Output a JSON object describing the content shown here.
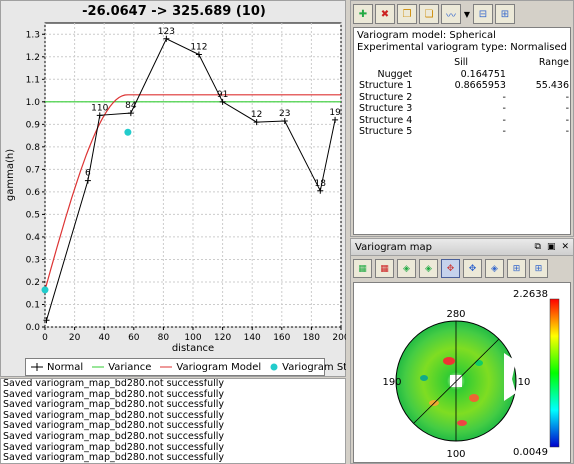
{
  "chart_title": "-26.0647 -> 325.689 (10)",
  "chart_data": {
    "type": "line",
    "xlabel": "distance",
    "ylabel": "gamma(h)",
    "xlim": [
      0,
      200
    ],
    "ylim": [
      0,
      1.35
    ],
    "x_ticks": [
      "0",
      "20",
      "40",
      "60",
      "80",
      "100",
      "120",
      "140",
      "160",
      "180",
      "200"
    ],
    "y_ticks": [
      "0.0",
      "0.1",
      "0.2",
      "0.3",
      "0.4",
      "0.5",
      "0.6",
      "0.7",
      "0.8",
      "0.9",
      "1.0",
      "1.1",
      "1.2",
      "1.3"
    ],
    "series": [
      {
        "name": "Normal",
        "color": "#000000",
        "points": [
          {
            "x": 1,
            "y": 0.03,
            "label": ""
          },
          {
            "x": 29,
            "y": 0.65,
            "label": "6"
          },
          {
            "x": 37,
            "y": 0.94,
            "label": "110"
          },
          {
            "x": 58,
            "y": 0.95,
            "label": "84"
          },
          {
            "x": 82,
            "y": 1.28,
            "label": "123"
          },
          {
            "x": 104,
            "y": 1.21,
            "label": "112"
          },
          {
            "x": 120,
            "y": 1.0,
            "label": "91"
          },
          {
            "x": 143,
            "y": 0.91,
            "label": "12"
          },
          {
            "x": 162,
            "y": 0.915,
            "label": "23"
          },
          {
            "x": 186,
            "y": 0.605,
            "label": "18"
          },
          {
            "x": 196,
            "y": 0.92,
            "label": "19"
          }
        ]
      },
      {
        "name": "Variance",
        "color": "#33cc33",
        "y": 1.0
      },
      {
        "name": "Variogram Model",
        "color": "#dd3333",
        "nugget": 0.164751,
        "sill": 0.8665953,
        "range": 55.436
      },
      {
        "name": "Variogram Structures",
        "color": "#22cccc",
        "points": [
          {
            "x": 0,
            "y": 0.165
          },
          {
            "x": 56,
            "y": 0.865
          }
        ]
      }
    ]
  },
  "legend": {
    "normal": "Normal",
    "variance": "Variance",
    "model": "Variogram Model",
    "structures": "Variogram Structures"
  },
  "log_lines": [
    "Saved variogram_map_bd280.not successfully",
    "Saved variogram_map_bd280.not successfully",
    "Saved variogram_map_bd280.not successfully",
    "Saved variogram_map_bd280.not successfully",
    "Saved variogram_map_bd280.not successfully",
    "Saved variogram_map_bd280.not successfully",
    "Saved variogram_map_bd280.not successfully",
    "Saved variogram_map_bd280.not successfully"
  ],
  "info": {
    "model_line": "Variogram model: Spherical",
    "type_line": "Experimental variogram type: Normalised",
    "col_sill": "Sill",
    "col_range": "Range",
    "rows": [
      {
        "label": "Nugget",
        "sill": "0.164751",
        "range": ""
      },
      {
        "label": "Structure 1",
        "sill": "0.8665953",
        "range": "55.436"
      },
      {
        "label": "Structure 2",
        "sill": "-",
        "range": "-"
      },
      {
        "label": "Structure 3",
        "sill": "-",
        "range": "-"
      },
      {
        "label": "Structure 4",
        "sill": "-",
        "range": "-"
      },
      {
        "label": "Structure 5",
        "sill": "-",
        "range": "-"
      }
    ]
  },
  "variogram_map": {
    "title": "Variogram map",
    "label_top": "280",
    "label_left": "190",
    "label_right": "10",
    "label_bottom": "100",
    "scale_max": "2.2638",
    "scale_min": "0.0049"
  }
}
